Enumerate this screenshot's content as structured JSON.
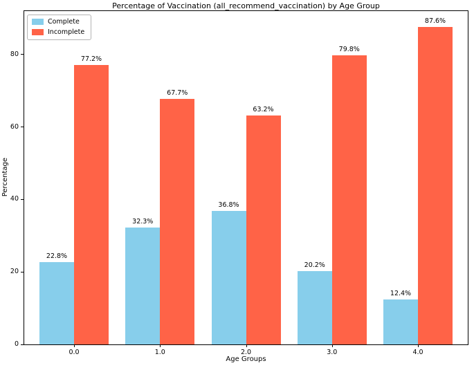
{
  "chart_data": {
    "type": "bar",
    "title": "Percentage of Vaccination (all_recommend_vaccination) by Age Group",
    "xlabel": "Age Groups",
    "ylabel": "Percentage",
    "categories": [
      "0.0",
      "1.0",
      "2.0",
      "3.0",
      "4.0"
    ],
    "series": [
      {
        "name": "Complete",
        "color": "#87CEEB",
        "values": [
          22.8,
          32.3,
          36.8,
          20.2,
          12.4
        ],
        "labels": [
          "22.8%",
          "32.3%",
          "36.8%",
          "20.2%",
          "12.4%"
        ]
      },
      {
        "name": "Incomplete",
        "color": "#FF6347",
        "values": [
          77.2,
          67.7,
          63.2,
          79.8,
          87.6
        ],
        "labels": [
          "77.2%",
          "67.7%",
          "63.2%",
          "79.8%",
          "87.6%"
        ]
      }
    ],
    "ylim": [
      0,
      92
    ],
    "yticks": [
      0,
      20,
      40,
      60,
      80
    ],
    "legend_position": "upper left",
    "grid": false,
    "bar_label_format": "{value}%"
  }
}
